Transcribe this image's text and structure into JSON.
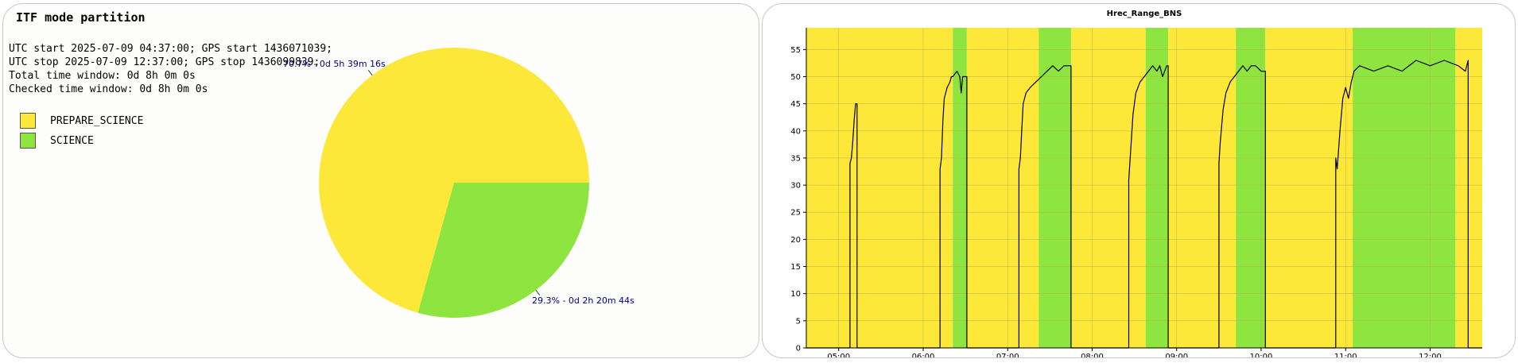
{
  "left": {
    "title": "ITF mode partition",
    "info_lines": [
      "UTC start 2025-07-09 04:37:00; GPS start 1436071039;",
      "UTC stop 2025-07-09 12:37:00; GPS stop 1436099839;",
      "Total time window: 0d 8h 0m 0s",
      "Checked time window: 0d 8h 0m 0s"
    ]
  },
  "colors": {
    "PREPARE_SCIENCE": "#fde83a",
    "SCIENCE": "#8ee53f",
    "slice_label": "#00007a"
  },
  "chart_data": [
    {
      "type": "pie",
      "legend": [
        "PREPARE_SCIENCE",
        "SCIENCE"
      ],
      "legend_position": "top-left",
      "slices": [
        {
          "name": "PREPARE_SCIENCE",
          "percent": 70.7,
          "label": "70.7% - 0d 5h 39m 16s"
        },
        {
          "name": "SCIENCE",
          "percent": 29.3,
          "label": "29.3% - 0d 2h 20m 44s"
        }
      ]
    },
    {
      "type": "line",
      "title": "Hrec_Range_BNS",
      "xlabel": "",
      "ylabel": "",
      "xlim": [
        "04:37",
        "12:37"
      ],
      "ylim": [
        0,
        59
      ],
      "grid": true,
      "x_ticks": [
        "05:00",
        "06:00",
        "07:00",
        "08:00",
        "09:00",
        "10:00",
        "11:00",
        "12:00"
      ],
      "y_ticks": [
        0,
        5,
        10,
        15,
        20,
        25,
        30,
        35,
        40,
        45,
        50,
        55
      ],
      "background_state_bands": [
        {
          "state": "PREPARE_SCIENCE",
          "start": "04:37",
          "end": "06:21"
        },
        {
          "state": "SCIENCE",
          "start": "06:21",
          "end": "06:31"
        },
        {
          "state": "PREPARE_SCIENCE",
          "start": "06:31",
          "end": "07:22"
        },
        {
          "state": "SCIENCE",
          "start": "07:22",
          "end": "07:45"
        },
        {
          "state": "PREPARE_SCIENCE",
          "start": "07:45",
          "end": "08:38"
        },
        {
          "state": "SCIENCE",
          "start": "08:38",
          "end": "08:54"
        },
        {
          "state": "PREPARE_SCIENCE",
          "start": "08:54",
          "end": "09:42"
        },
        {
          "state": "SCIENCE",
          "start": "09:42",
          "end": "10:03"
        },
        {
          "state": "PREPARE_SCIENCE",
          "start": "10:03",
          "end": "11:05"
        },
        {
          "state": "SCIENCE",
          "start": "11:05",
          "end": "12:18"
        },
        {
          "state": "PREPARE_SCIENCE",
          "start": "12:18",
          "end": "12:37"
        }
      ],
      "series": [
        {
          "points": [
            [
              "04:37",
              0
            ],
            [
              "05:08",
              0
            ],
            [
              "05:08",
              34
            ],
            [
              "05:09",
              35
            ],
            [
              "05:10",
              38
            ],
            [
              "05:11",
              42
            ],
            [
              "05:12",
              45
            ],
            [
              "05:13",
              45
            ],
            [
              "05:13",
              0
            ],
            [
              "06:12",
              0
            ],
            [
              "06:12",
              33
            ],
            [
              "06:13",
              35
            ],
            [
              "06:14",
              42
            ],
            [
              "06:15",
              46
            ],
            [
              "06:17",
              48
            ],
            [
              "06:19",
              49
            ],
            [
              "06:20",
              50
            ],
            [
              "06:21",
              50
            ],
            [
              "06:24",
              51
            ],
            [
              "06:26",
              50
            ],
            [
              "06:27",
              47
            ],
            [
              "06:28",
              50
            ],
            [
              "06:30",
              50
            ],
            [
              "06:31",
              50
            ],
            [
              "06:31",
              0
            ],
            [
              "07:08",
              0
            ],
            [
              "07:08",
              33
            ],
            [
              "07:09",
              35
            ],
            [
              "07:10",
              40
            ],
            [
              "07:11",
              45
            ],
            [
              "07:13",
              47
            ],
            [
              "07:16",
              48
            ],
            [
              "07:20",
              49
            ],
            [
              "07:24",
              50
            ],
            [
              "07:28",
              51
            ],
            [
              "07:32",
              52
            ],
            [
              "07:36",
              51
            ],
            [
              "07:40",
              52
            ],
            [
              "07:44",
              52
            ],
            [
              "07:45",
              52
            ],
            [
              "07:45",
              0
            ],
            [
              "08:26",
              0
            ],
            [
              "08:26",
              31
            ],
            [
              "08:27",
              35
            ],
            [
              "08:29",
              43
            ],
            [
              "08:31",
              47
            ],
            [
              "08:34",
              49
            ],
            [
              "08:37",
              50
            ],
            [
              "08:40",
              51
            ],
            [
              "08:43",
              52
            ],
            [
              "08:46",
              51
            ],
            [
              "08:48",
              52
            ],
            [
              "08:50",
              50
            ],
            [
              "08:53",
              52
            ],
            [
              "08:54",
              52
            ],
            [
              "08:54",
              0
            ],
            [
              "09:30",
              0
            ],
            [
              "09:30",
              34
            ],
            [
              "09:31",
              38
            ],
            [
              "09:33",
              44
            ],
            [
              "09:35",
              47
            ],
            [
              "09:38",
              49
            ],
            [
              "09:41",
              50
            ],
            [
              "09:44",
              51
            ],
            [
              "09:47",
              52
            ],
            [
              "09:50",
              51
            ],
            [
              "09:53",
              52
            ],
            [
              "09:56",
              52
            ],
            [
              "10:00",
              51
            ],
            [
              "10:03",
              51
            ],
            [
              "10:03",
              0
            ],
            [
              "10:53",
              0
            ],
            [
              "10:53",
              35
            ],
            [
              "10:54",
              33
            ],
            [
              "10:56",
              40
            ],
            [
              "10:58",
              46
            ],
            [
              "11:00",
              48
            ],
            [
              "11:02",
              46
            ],
            [
              "11:04",
              49
            ],
            [
              "11:06",
              51
            ],
            [
              "11:10",
              52
            ],
            [
              "11:20",
              51
            ],
            [
              "11:30",
              52
            ],
            [
              "11:40",
              51
            ],
            [
              "11:50",
              53
            ],
            [
              "12:00",
              52
            ],
            [
              "12:10",
              53
            ],
            [
              "12:20",
              52
            ],
            [
              "12:25",
              51
            ],
            [
              "12:27",
              53
            ],
            [
              "12:27",
              0
            ],
            [
              "12:37",
              0
            ]
          ]
        }
      ]
    }
  ]
}
